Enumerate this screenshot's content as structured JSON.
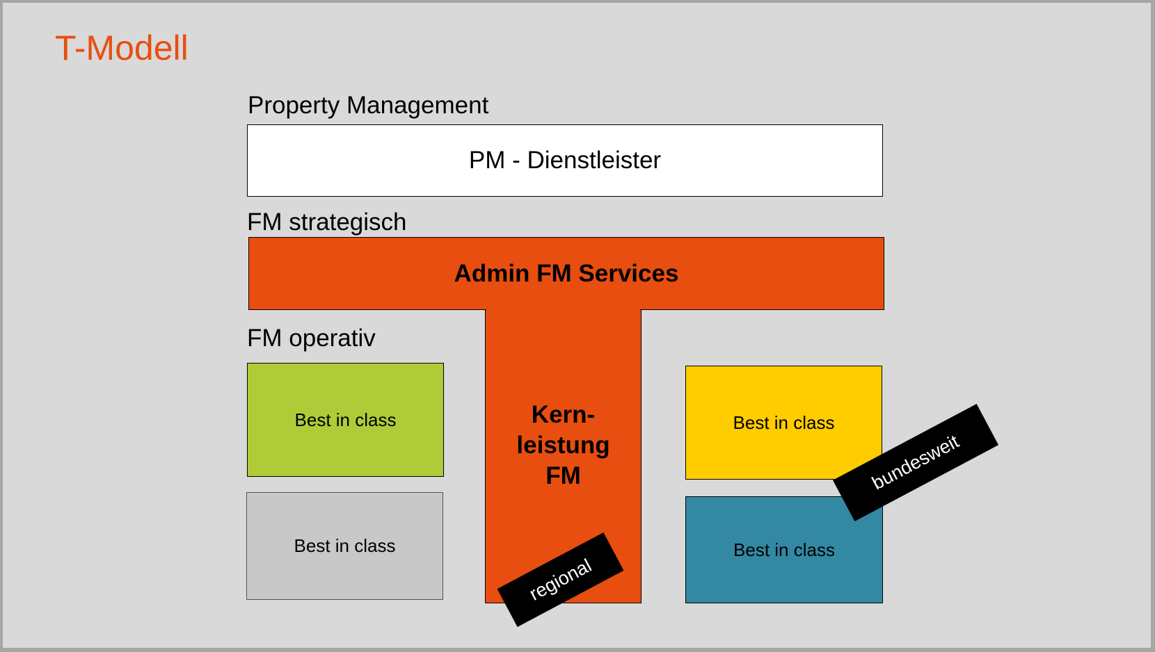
{
  "title": "T-Modell",
  "colors": {
    "accent": "#e84e10",
    "green": "#b0cb38",
    "gray": "#c8c8c8",
    "yellow": "#ffcc00",
    "teal": "#3389a3"
  },
  "sections": {
    "property_management": {
      "label": "Property Management",
      "box": "PM - Dienstleister"
    },
    "fm_strategisch": {
      "label": "FM strategisch",
      "box": "Admin FM Services"
    },
    "fm_operativ": {
      "label": "FM operativ"
    }
  },
  "core": {
    "line1": "Kern-",
    "line2": "leistung",
    "line3": "FM"
  },
  "best_in_class": [
    "Best in class",
    "Best in class",
    "Best in class",
    "Best in class"
  ],
  "tags": {
    "regional": "regional",
    "bundesweit": "bundesweit"
  }
}
